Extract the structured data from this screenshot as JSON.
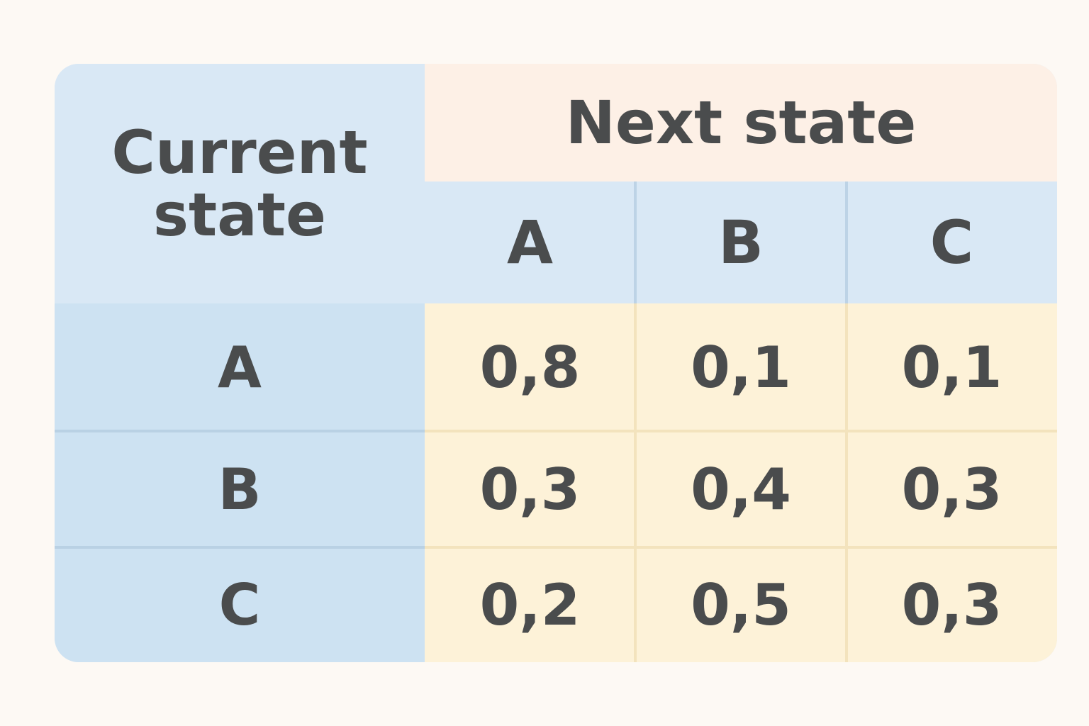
{
  "table": {
    "corner_label_line1": "Current",
    "corner_label_line2": "state",
    "next_state_label": "Next state",
    "columns": [
      "A",
      "B",
      "C"
    ],
    "rows": [
      {
        "label": "A",
        "values": [
          "0,8",
          "0,1",
          "0,1"
        ]
      },
      {
        "label": "B",
        "values": [
          "0,3",
          "0,4",
          "0,3"
        ]
      },
      {
        "label": "C",
        "values": [
          "0,2",
          "0,5",
          "0,3"
        ]
      }
    ]
  },
  "colors": {
    "header_blue": "#d9e8f5",
    "row_header_blue": "#cde2f2",
    "next_state_peach": "#fdf0e6",
    "value_yellow": "#fdf2d8",
    "text": "#4a4c4d"
  }
}
